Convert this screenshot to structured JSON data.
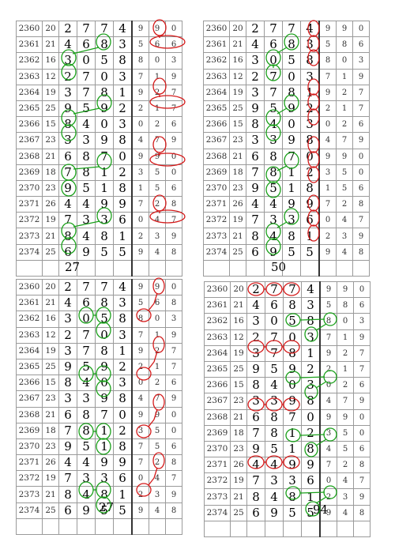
{
  "panels": [
    {
      "rows": [
        [
          "2360",
          "20",
          "2",
          "7",
          "7",
          "4",
          "9",
          "9",
          "0"
        ],
        [
          "2361",
          "21",
          "4",
          "6",
          "8",
          "3",
          "5",
          "6",
          "6"
        ],
        [
          "2362",
          "16",
          "3",
          "0",
          "5",
          "8",
          "8",
          "0",
          "3"
        ],
        [
          "2363",
          "12",
          "2",
          "7",
          "0",
          "3",
          "7",
          "1",
          "9"
        ],
        [
          "2364",
          "19",
          "3",
          "7",
          "8",
          "1",
          "9",
          "2",
          "7"
        ],
        [
          "2365",
          "25",
          "9",
          "5",
          "9",
          "2",
          "2",
          "1",
          "7"
        ],
        [
          "2366",
          "15",
          "8",
          "4",
          "0",
          "3",
          "0",
          "2",
          "6"
        ],
        [
          "2367",
          "23",
          "3",
          "3",
          "9",
          "8",
          "4",
          "7",
          "9"
        ],
        [
          "2368",
          "21",
          "6",
          "8",
          "7",
          "0",
          "9",
          "9",
          "0"
        ],
        [
          "2369",
          "18",
          "7",
          "8",
          "1",
          "2",
          "3",
          "5",
          "0"
        ],
        [
          "2370",
          "23",
          "9",
          "5",
          "1",
          "8",
          "1",
          "5",
          "6"
        ],
        [
          "2371",
          "26",
          "4",
          "4",
          "9",
          "9",
          "7",
          "2",
          "8"
        ],
        [
          "2372",
          "19",
          "7",
          "3",
          "3",
          "6",
          "0",
          "4",
          "7"
        ],
        [
          "2373",
          "21",
          "8",
          "4",
          "8",
          "1",
          "2",
          "3",
          "9"
        ],
        [
          "2374",
          "25",
          "6",
          "9",
          "5",
          "5",
          "9",
          "4",
          "8"
        ]
      ],
      "footer": "27"
    },
    {
      "rows": [
        [
          "2360",
          "20",
          "2",
          "7",
          "7",
          "4",
          "9",
          "9",
          "0"
        ],
        [
          "2361",
          "21",
          "4",
          "6",
          "8",
          "3",
          "5",
          "8",
          "6"
        ],
        [
          "2362",
          "16",
          "3",
          "0",
          "5",
          "8",
          "8",
          "0",
          "3"
        ],
        [
          "2363",
          "12",
          "2",
          "7",
          "0",
          "3",
          "7",
          "1",
          "9"
        ],
        [
          "2364",
          "19",
          "3",
          "7",
          "8",
          "1",
          "9",
          "2",
          "7"
        ],
        [
          "2365",
          "25",
          "9",
          "5",
          "9",
          "2",
          "2",
          "1",
          "7"
        ],
        [
          "2366",
          "15",
          "8",
          "4",
          "0",
          "3",
          "0",
          "2",
          "6"
        ],
        [
          "2367",
          "23",
          "3",
          "3",
          "9",
          "8",
          "4",
          "7",
          "9"
        ],
        [
          "2368",
          "21",
          "6",
          "8",
          "7",
          "0",
          "9",
          "9",
          "0"
        ],
        [
          "2369",
          "18",
          "7",
          "8",
          "1",
          "2",
          "3",
          "5",
          "0"
        ],
        [
          "2370",
          "23",
          "9",
          "5",
          "1",
          "8",
          "1",
          "5",
          "6"
        ],
        [
          "2371",
          "26",
          "4",
          "4",
          "9",
          "9",
          "7",
          "2",
          "8"
        ],
        [
          "2372",
          "19",
          "7",
          "3",
          "3",
          "6",
          "0",
          "4",
          "7"
        ],
        [
          "2373",
          "21",
          "8",
          "4",
          "8",
          "1",
          "2",
          "3",
          "9"
        ],
        [
          "2374",
          "25",
          "6",
          "9",
          "5",
          "5",
          "9",
          "4",
          "8"
        ]
      ],
      "footer": "50"
    },
    {
      "rows": [
        [
          "2360",
          "20",
          "2",
          "7",
          "7",
          "4",
          "9",
          "9",
          "0"
        ],
        [
          "2361",
          "21",
          "4",
          "6",
          "8",
          "3",
          "5",
          "6",
          "8"
        ],
        [
          "2362",
          "16",
          "3",
          "0",
          "5",
          "8",
          "8",
          "0",
          "3"
        ],
        [
          "2363",
          "12",
          "2",
          "7",
          "0",
          "3",
          "7",
          "1",
          "9"
        ],
        [
          "2364",
          "19",
          "3",
          "7",
          "8",
          "1",
          "9",
          "2",
          "7"
        ],
        [
          "2365",
          "25",
          "9",
          "5",
          "9",
          "2",
          "2",
          "1",
          "7"
        ],
        [
          "2366",
          "15",
          "8",
          "4",
          "0",
          "3",
          "0",
          "2",
          "6"
        ],
        [
          "2367",
          "23",
          "3",
          "3",
          "9",
          "8",
          "4",
          "7",
          "9"
        ],
        [
          "2368",
          "21",
          "6",
          "8",
          "7",
          "0",
          "9",
          "9",
          "0"
        ],
        [
          "2369",
          "18",
          "7",
          "8",
          "1",
          "2",
          "3",
          "5",
          "0"
        ],
        [
          "2370",
          "23",
          "9",
          "5",
          "1",
          "8",
          "7",
          "5",
          "6"
        ],
        [
          "2371",
          "26",
          "4",
          "4",
          "9",
          "9",
          "7",
          "2",
          "8"
        ],
        [
          "2372",
          "19",
          "7",
          "3",
          "3",
          "6",
          "0",
          "4",
          "7"
        ],
        [
          "2373",
          "21",
          "8",
          "4",
          "8",
          "1",
          "2",
          "3",
          "9"
        ],
        [
          "2374",
          "25",
          "6",
          "9",
          "5",
          "5",
          "9",
          "4",
          "8"
        ]
      ],
      "footer": "27"
    },
    {
      "rows": [
        [
          "2360",
          "20",
          "2",
          "7",
          "7",
          "4",
          "9",
          "9",
          "0"
        ],
        [
          "2361",
          "21",
          "4",
          "6",
          "8",
          "3",
          "5",
          "8",
          "6"
        ],
        [
          "2362",
          "16",
          "3",
          "0",
          "5",
          "8",
          "8",
          "0",
          "3"
        ],
        [
          "2363",
          "12",
          "2",
          "7",
          "0",
          "3",
          "7",
          "1",
          "9"
        ],
        [
          "2364",
          "19",
          "3",
          "7",
          "8",
          "1",
          "9",
          "2",
          "7"
        ],
        [
          "2365",
          "25",
          "9",
          "5",
          "9",
          "2",
          "2",
          "1",
          "7"
        ],
        [
          "2366",
          "15",
          "8",
          "4",
          "0",
          "3",
          "0",
          "2",
          "6"
        ],
        [
          "2367",
          "23",
          "3",
          "3",
          "9",
          "8",
          "4",
          "7",
          "9"
        ],
        [
          "2368",
          "21",
          "6",
          "8",
          "7",
          "0",
          "9",
          "9",
          "0"
        ],
        [
          "2369",
          "18",
          "7",
          "8",
          "1",
          "2",
          "3",
          "5",
          "0"
        ],
        [
          "2370",
          "23",
          "9",
          "5",
          "1",
          "8",
          "4",
          "5",
          "6"
        ],
        [
          "2371",
          "26",
          "4",
          "4",
          "9",
          "9",
          "7",
          "2",
          "8"
        ],
        [
          "2372",
          "19",
          "7",
          "3",
          "3",
          "6",
          "0",
          "4",
          "7"
        ],
        [
          "2373",
          "21",
          "8",
          "4",
          "8",
          "1",
          "2",
          "3",
          "9"
        ],
        [
          "2374",
          "25",
          "6",
          "9",
          "5",
          "5",
          "9",
          "4",
          "8"
        ]
      ],
      "footer": "94"
    }
  ],
  "marks": {
    "green": "#1aa01a",
    "red": "#d41a1a"
  }
}
